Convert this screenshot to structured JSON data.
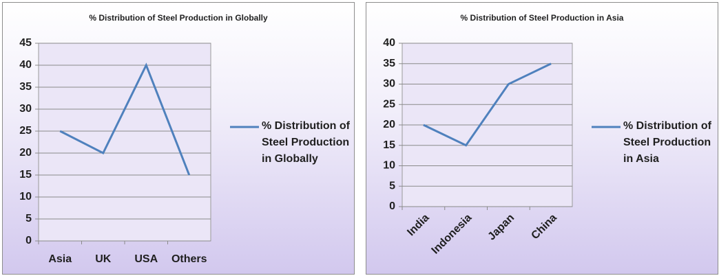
{
  "chart_data": [
    {
      "type": "line",
      "title": "% Distribution of Steel Production in Globally",
      "categories": [
        "Asia",
        "UK",
        "USA",
        "Others"
      ],
      "series": [
        {
          "name": "% Distribution of Steel Production in Globally",
          "color": "#4f81bd",
          "values": [
            25,
            20,
            40,
            15
          ]
        }
      ],
      "ylim": [
        0,
        45
      ],
      "yticks": [
        0,
        5,
        10,
        15,
        20,
        25,
        30,
        35,
        40,
        45
      ],
      "grid": true,
      "legend": "right"
    },
    {
      "type": "line",
      "title": "% Distribution of Steel Production in Asia",
      "categories": [
        "India",
        "Indonesia",
        "Japan",
        "China"
      ],
      "series": [
        {
          "name": "% Distribution of Steel Production in Asia",
          "color": "#4f81bd",
          "values": [
            20,
            15,
            30,
            35
          ]
        }
      ],
      "ylim": [
        0,
        40
      ],
      "yticks": [
        0,
        5,
        10,
        15,
        20,
        25,
        30,
        35,
        40
      ],
      "grid": true,
      "legend": "right"
    }
  ]
}
